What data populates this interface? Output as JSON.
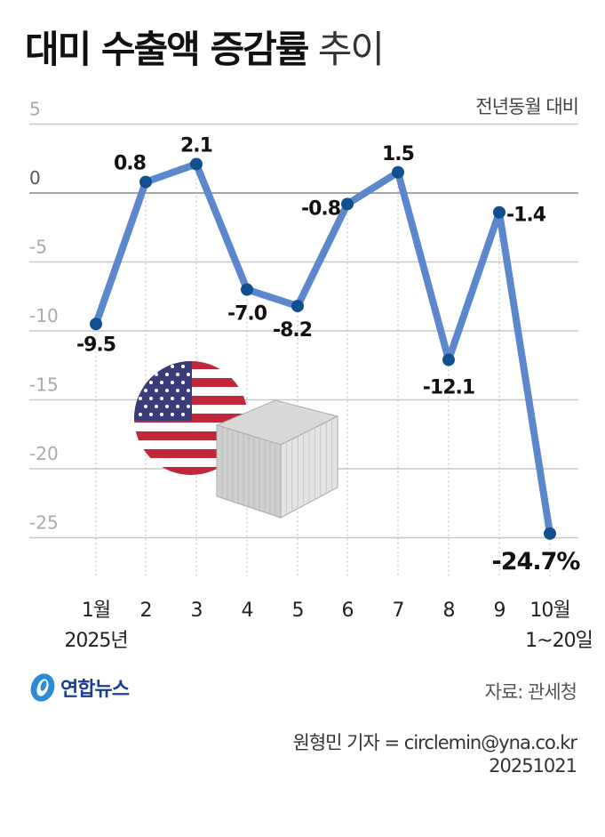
{
  "header": {
    "title_bold": "대미 수출액 증감률",
    "title_light": "추이",
    "unit_note": "전년동월 대비"
  },
  "colors": {
    "line": "#5b87cc",
    "point": "#124f8f",
    "gridline": "#c8c8c8",
    "zero_line": "#888888",
    "axis_label": "#aaaaaa",
    "text": "#111111"
  },
  "chart_data": {
    "type": "line",
    "title": "대미 수출액 증감률 추이",
    "subtitle": "전년동월 대비",
    "xlabel": "",
    "ylabel": "",
    "categories": [
      "1월",
      "2",
      "3",
      "4",
      "5",
      "6",
      "7",
      "8",
      "9",
      "10월"
    ],
    "category_sublabels": [
      "2025년",
      "",
      "",
      "",
      "",
      "",
      "",
      "",
      "",
      "1~20일"
    ],
    "series": [
      {
        "name": "대미 수출액 증감률",
        "values": [
          -9.5,
          0.8,
          2.1,
          -7.0,
          -8.2,
          -0.8,
          1.5,
          -12.1,
          -1.4,
          -24.7
        ]
      }
    ],
    "data_labels": [
      "-9.5",
      "0.8",
      "2.1",
      "-7.0",
      "-8.2",
      "-0.8",
      "1.5",
      "-12.1",
      "-1.4",
      "-24.7%"
    ],
    "yticks": [
      5,
      0,
      -5,
      -10,
      -15,
      -20,
      -25
    ],
    "ytick_labels": [
      "5",
      "0",
      "-5",
      "-10",
      "-15",
      "-20",
      "-25"
    ],
    "ylim": [
      -25,
      5
    ],
    "grid": true,
    "legend": "none",
    "annotations": [
      "US flag and shipping container illustration"
    ]
  },
  "footer": {
    "logo_text": "연합뉴스",
    "source": "자료: 관세청",
    "credit_line": "원형민 기자 = circlemin@yna.co.kr",
    "date": "20251021"
  }
}
